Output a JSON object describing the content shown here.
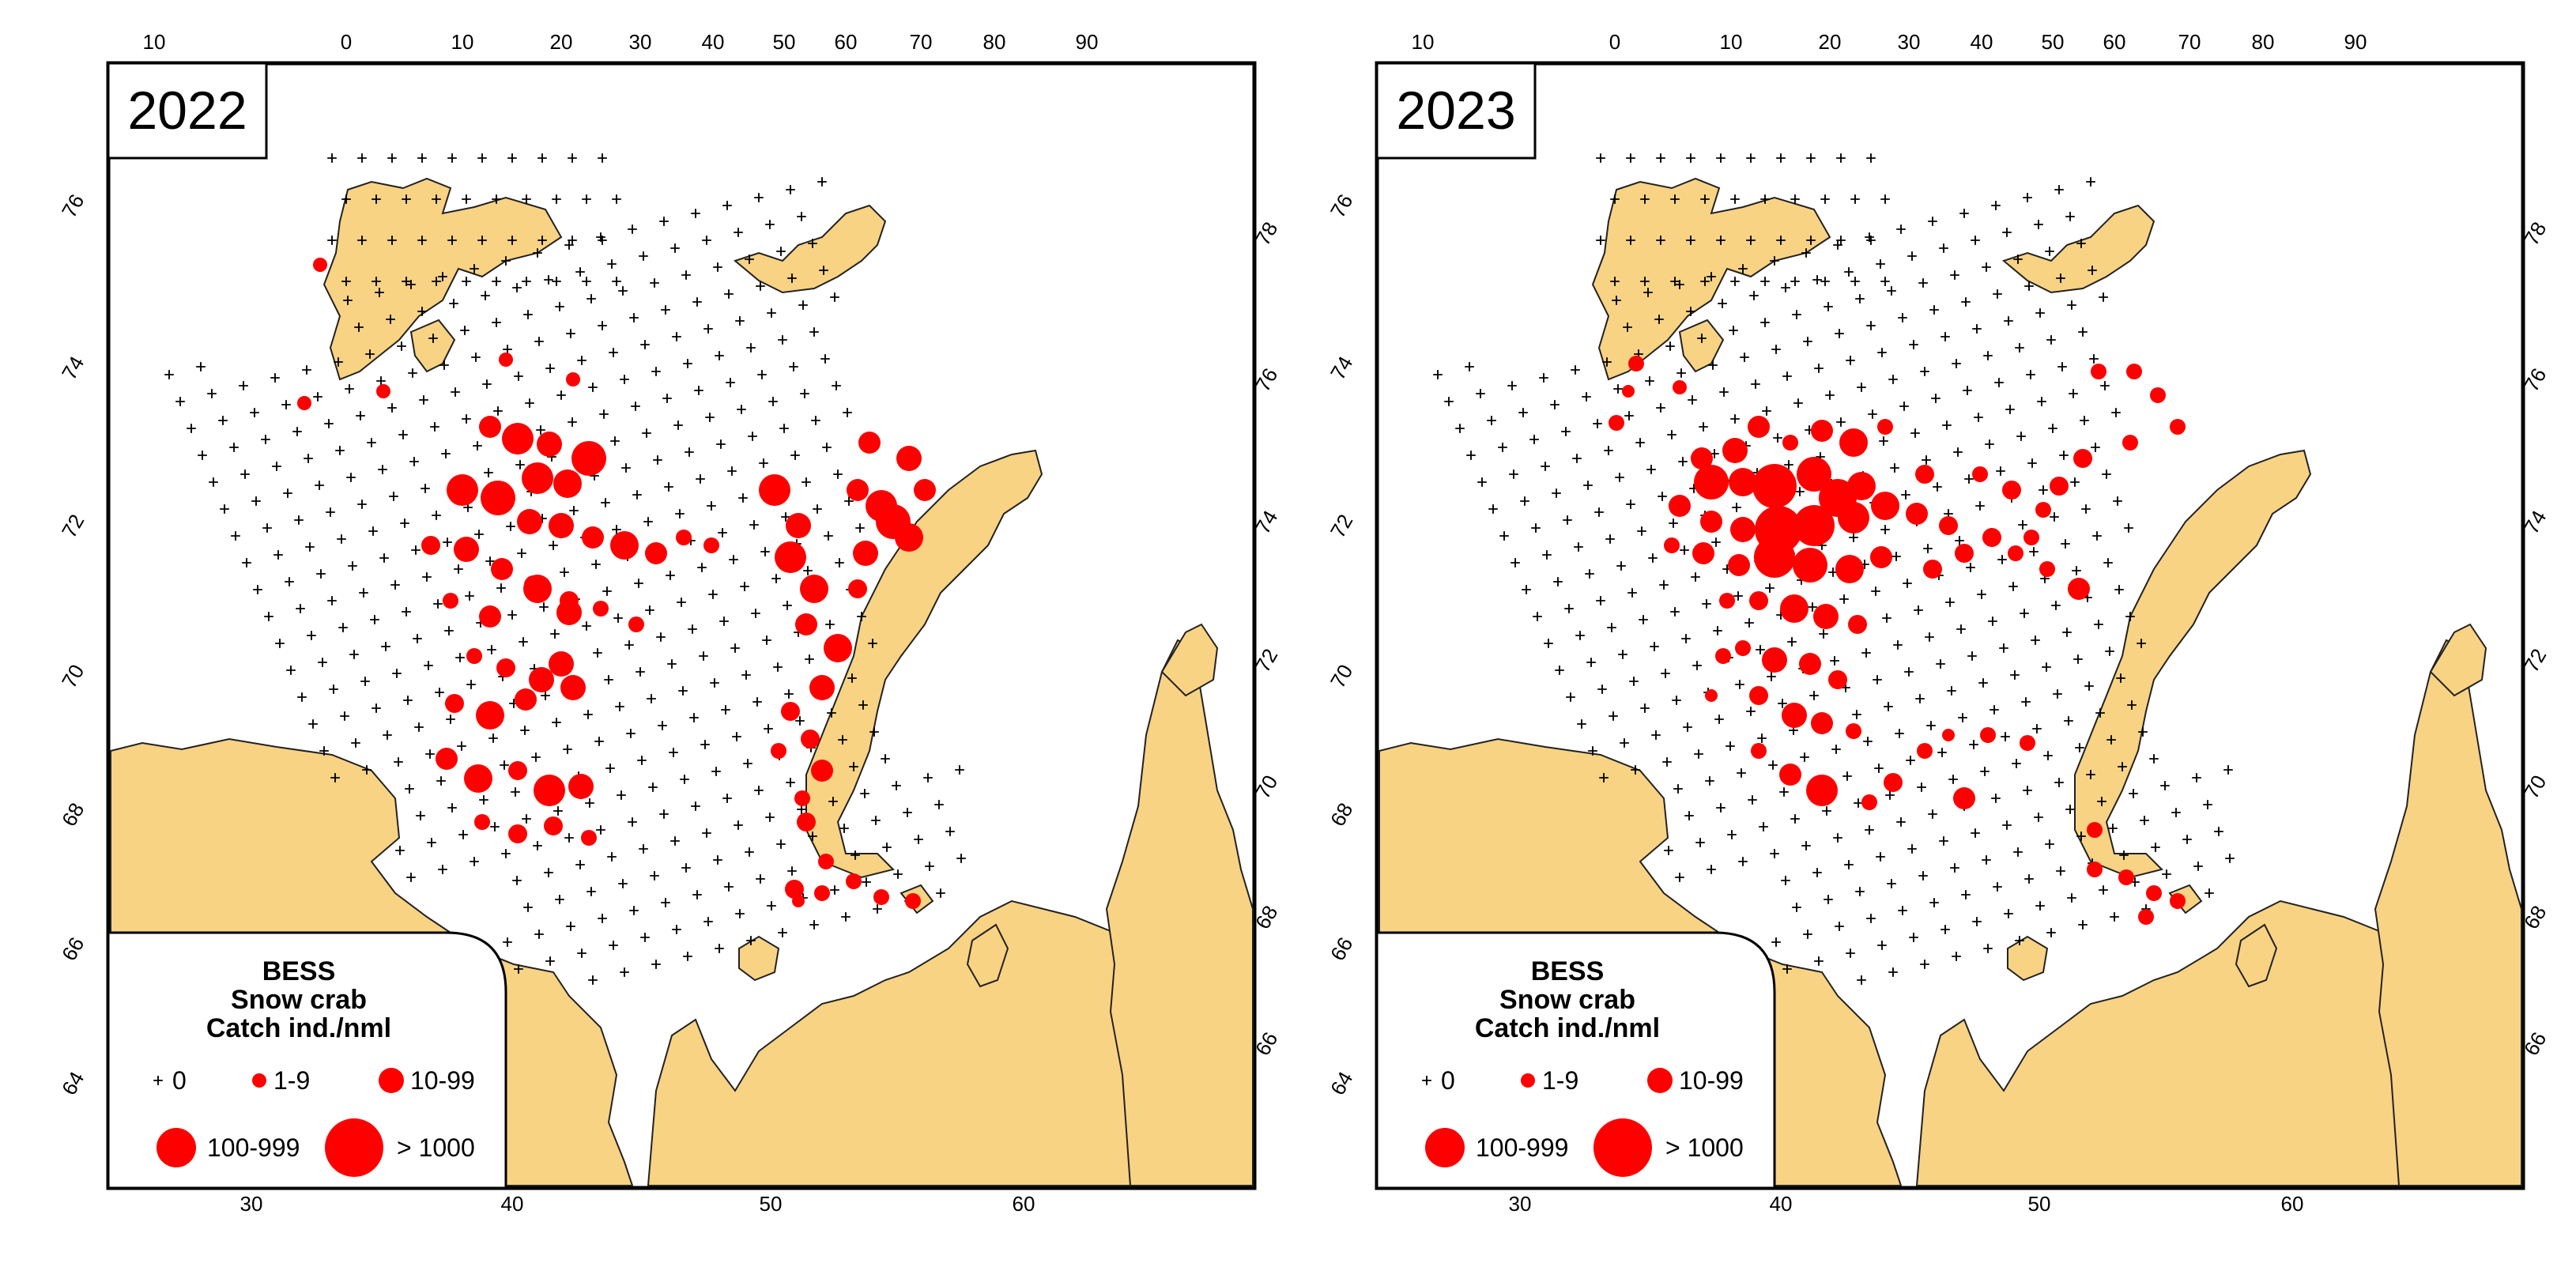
{
  "colors": {
    "land": "#f8d384",
    "catch": "#ff0000",
    "water": "#ffffff",
    "frame": "#000000"
  },
  "map_data": {
    "top_longitude_labels": [
      "10",
      "0",
      "10",
      "20",
      "30",
      "40",
      "50",
      "60",
      "70",
      "80",
      "90"
    ],
    "bottom_longitude_labels": [
      "30",
      "40",
      "50",
      "60"
    ],
    "left_latitude_labels": [
      "76",
      "74",
      "72",
      "70",
      "68",
      "66",
      "64"
    ],
    "right_latitude_labels": [
      "78",
      "76",
      "74",
      "72",
      "70",
      "68",
      "66"
    ]
  },
  "panels": [
    {
      "year": "2022",
      "legend": {
        "title": "BESS",
        "species": "Snow crab",
        "unit": "Catch ind./nml",
        "classes": [
          "0",
          "1-9",
          "10-99",
          "100-999",
          "> 1000"
        ]
      }
    },
    {
      "year": "2023",
      "legend": {
        "title": "BESS",
        "species": "Snow crab",
        "unit": "Catch ind./nml",
        "classes": [
          "0",
          "1-9",
          "10-99",
          "100-999",
          "> 1000"
        ]
      }
    }
  ],
  "legend_symbols": [
    "plus",
    "small-dot",
    "medium-dot",
    "large-dot",
    "largest-dot"
  ]
}
